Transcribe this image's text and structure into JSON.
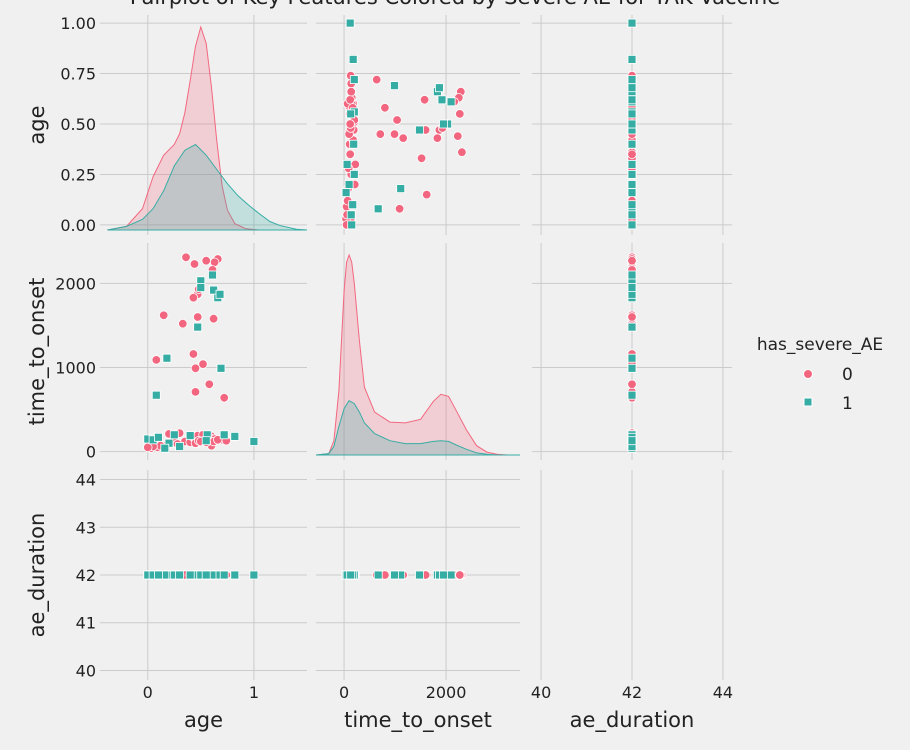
{
  "chart_data": {
    "type": "scatter",
    "title": "Pairplot of Key Features Colored by Severe AE for YAK Vaccine",
    "variables": [
      "age",
      "time_to_onset",
      "ae_duration"
    ],
    "hue": "has_severe_AE",
    "legend_title": "has_severe_AE",
    "legend_position": "right",
    "grid": true,
    "axes": {
      "age": {
        "lim": [
          -0.45,
          1.5
        ],
        "ticks": [
          0,
          1
        ],
        "tick_labels": [
          "0",
          "1"
        ],
        "lim_row": [
          -0.05,
          1.04
        ],
        "ticks_row": [
          0.0,
          0.25,
          0.5,
          0.75,
          1.0
        ],
        "tick_labels_row": [
          "0.00",
          "0.25",
          "0.50",
          "0.75",
          "1.00"
        ]
      },
      "time_to_onset": {
        "lim": [
          -550,
          3450
        ],
        "ticks": [
          0,
          2000
        ],
        "tick_labels": [
          "0",
          "2000"
        ],
        "lim_row": [
          -100,
          2480
        ],
        "ticks_row": [
          0,
          1000,
          2000
        ],
        "tick_labels_row": [
          "0",
          "1000",
          "2000"
        ]
      },
      "ae_duration": {
        "lim": [
          39.8,
          44.2
        ],
        "ticks": [
          40,
          42,
          44
        ],
        "tick_labels": [
          "40",
          "42",
          "44"
        ],
        "lim_row": [
          39.8,
          44.2
        ],
        "ticks_row": [
          40,
          41,
          42,
          43,
          44
        ],
        "tick_labels_row": [
          "40",
          "41",
          "42",
          "43",
          "44"
        ]
      }
    },
    "series": [
      {
        "name": "0",
        "marker": "circle",
        "color": "#f2677f",
        "age": [
          0.36,
          0.44,
          0.47,
          0.43,
          0.48,
          0.66,
          0.63,
          0.61,
          0.55,
          0.15,
          0.08,
          0.33,
          0.43,
          0.52,
          0.45,
          0.62,
          0.72,
          0.45,
          0.58,
          0.47,
          0.6,
          0.51,
          0.54,
          0.6,
          0.4,
          0.02,
          0.25,
          0.35,
          0.4,
          0.46,
          0.59,
          0.6,
          0.12,
          0.09,
          0.03,
          0.2,
          0.3,
          0.42,
          0.47,
          0.52,
          0.58,
          0.63,
          0.7,
          0.74,
          0.62,
          0.55,
          0.45,
          0.28,
          0.18,
          0.12,
          0.05,
          0.0,
          0.66,
          0.48,
          0.5
        ],
        "time_to_onset": [
          2310,
          2230,
          1870,
          1830,
          1930,
          2290,
          2250,
          2160,
          2270,
          1620,
          1090,
          1520,
          1160,
          1040,
          990,
          1580,
          640,
          710,
          800,
          1600,
          180,
          200,
          170,
          150,
          160,
          130,
          140,
          120,
          110,
          100,
          90,
          70,
          60,
          50,
          40,
          210,
          220,
          180,
          190,
          200,
          170,
          150,
          140,
          130,
          120,
          110,
          100,
          90,
          80,
          70,
          60,
          50,
          140,
          130,
          120
        ],
        "ae_duration": [
          42,
          42,
          42,
          42,
          42,
          42,
          42,
          42,
          42,
          42,
          42,
          42,
          42,
          42,
          42,
          42,
          42,
          42,
          42,
          42,
          42,
          42,
          42,
          42,
          42,
          42,
          42,
          42,
          42,
          42,
          42,
          42,
          42,
          42,
          42,
          42,
          42,
          42,
          42,
          42,
          42,
          42,
          42,
          42,
          42,
          42,
          42,
          42,
          42,
          42,
          42,
          42,
          42,
          42,
          42
        ]
      },
      {
        "name": "1",
        "marker": "square",
        "color": "#36ada4",
        "age": [
          0.08,
          0.18,
          0.47,
          0.5,
          0.61,
          0.66,
          0.2,
          0.69,
          0.56,
          1.0,
          0.82,
          0.62,
          0.68,
          0.5,
          0.16,
          0.0,
          0.05,
          0.25,
          0.4,
          0.3,
          0.72,
          0.1,
          0.55
        ],
        "time_to_onset": [
          670,
          1110,
          1480,
          2030,
          2100,
          1830,
          100,
          990,
          200,
          120,
          180,
          1920,
          1870,
          1950,
          40,
          150,
          140,
          200,
          190,
          60,
          200,
          170,
          130
        ],
        "ae_duration": [
          42,
          42,
          42,
          42,
          42,
          42,
          42,
          42,
          42,
          42,
          42,
          42,
          42,
          42,
          42,
          42,
          42,
          42,
          42,
          42,
          42,
          42,
          42
        ]
      }
    ],
    "kde": {
      "age": [
        {
          "name": "0",
          "x": [
            -0.38,
            -0.2,
            -0.05,
            0.05,
            0.15,
            0.25,
            0.3,
            0.35,
            0.4,
            0.45,
            0.5,
            0.55,
            0.6,
            0.65,
            0.7,
            0.75,
            0.82,
            0.92,
            1.05,
            1.2
          ],
          "density": [
            0.0,
            0.05,
            0.3,
            0.75,
            1.05,
            1.2,
            1.35,
            1.65,
            2.1,
            2.58,
            2.85,
            2.62,
            2.0,
            1.25,
            0.62,
            0.28,
            0.09,
            0.02,
            0.0,
            0.0
          ]
        },
        {
          "name": "1",
          "x": [
            -0.38,
            -0.2,
            -0.05,
            0.05,
            0.15,
            0.25,
            0.35,
            0.45,
            0.55,
            0.65,
            0.75,
            0.85,
            0.95,
            1.05,
            1.15,
            1.25,
            1.4,
            1.5
          ],
          "density": [
            0.0,
            0.05,
            0.15,
            0.3,
            0.55,
            0.9,
            1.12,
            1.2,
            1.05,
            0.85,
            0.65,
            0.48,
            0.35,
            0.23,
            0.12,
            0.06,
            0.01,
            0.0
          ]
        }
      ],
      "time_to_onset": [
        {
          "name": "0",
          "x": [
            -550,
            -300,
            -200,
            -100,
            -50,
            0,
            50,
            100,
            150,
            200,
            300,
            400,
            600,
            900,
            1200,
            1500,
            1750,
            1900,
            2050,
            2200,
            2400,
            2600,
            2800,
            3000,
            3200,
            3450
          ],
          "density": [
            0.0,
            0.02,
            0.2,
            0.9,
            1.6,
            2.3,
            2.7,
            2.8,
            2.7,
            2.4,
            1.6,
            0.95,
            0.6,
            0.46,
            0.45,
            0.5,
            0.75,
            0.85,
            0.82,
            0.62,
            0.35,
            0.13,
            0.04,
            0.01,
            0.0,
            0.0
          ]
        },
        {
          "name": "1",
          "x": [
            -550,
            -300,
            -200,
            -100,
            0,
            100,
            200,
            300,
            400,
            600,
            900,
            1200,
            1500,
            1750,
            1900,
            2050,
            2200,
            2400,
            2600,
            2800,
            3000,
            3450
          ],
          "density": [
            0.0,
            0.02,
            0.12,
            0.4,
            0.65,
            0.76,
            0.72,
            0.6,
            0.45,
            0.3,
            0.2,
            0.16,
            0.16,
            0.19,
            0.2,
            0.19,
            0.14,
            0.08,
            0.03,
            0.01,
            0.0,
            0.0
          ]
        }
      ]
    }
  },
  "legend": {
    "title": "has_severe_AE",
    "items": [
      "0",
      "1"
    ]
  },
  "colors": {
    "background": "#f0f0f0",
    "grid": "#cbcbcb",
    "series0": "#f2677f",
    "series1": "#36ada4"
  }
}
